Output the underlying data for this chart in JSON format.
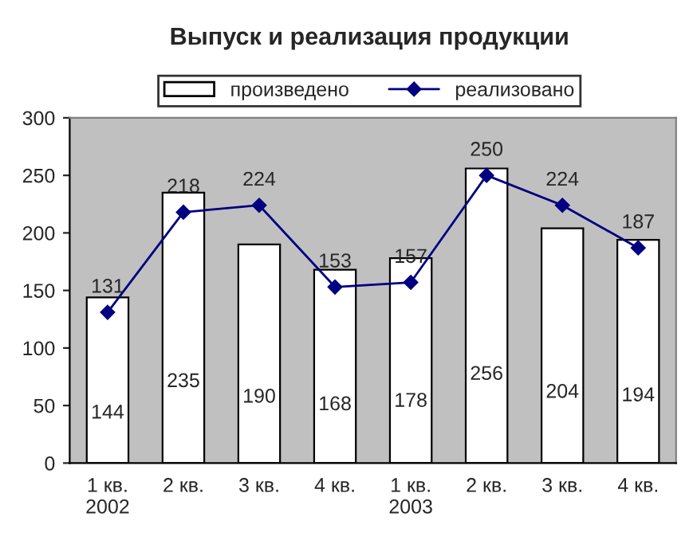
{
  "chart_data": {
    "type": "bar",
    "title": "Выпуск и реализация продукции",
    "categories": [
      "1 кв.\n2002",
      "2 кв.",
      "3 кв.",
      "4 кв.",
      "1 кв.\n2003",
      "2 кв.",
      "3 кв.",
      "4 кв."
    ],
    "series": [
      {
        "name": "произведено",
        "color": "#ffffff",
        "values": [
          144,
          235,
          190,
          168,
          178,
          256,
          204,
          194
        ]
      },
      {
        "name": "реализовано",
        "type": "line",
        "color": "#000080",
        "values": [
          131,
          218,
          224,
          153,
          157,
          250,
          224,
          187
        ]
      }
    ],
    "ylim": [
      0,
      300
    ],
    "yticks": [
      0,
      50,
      100,
      150,
      200,
      250,
      300
    ],
    "data_labels": true,
    "grid": false,
    "legend": "top",
    "marker": "diamond",
    "line_style": "solid"
  }
}
